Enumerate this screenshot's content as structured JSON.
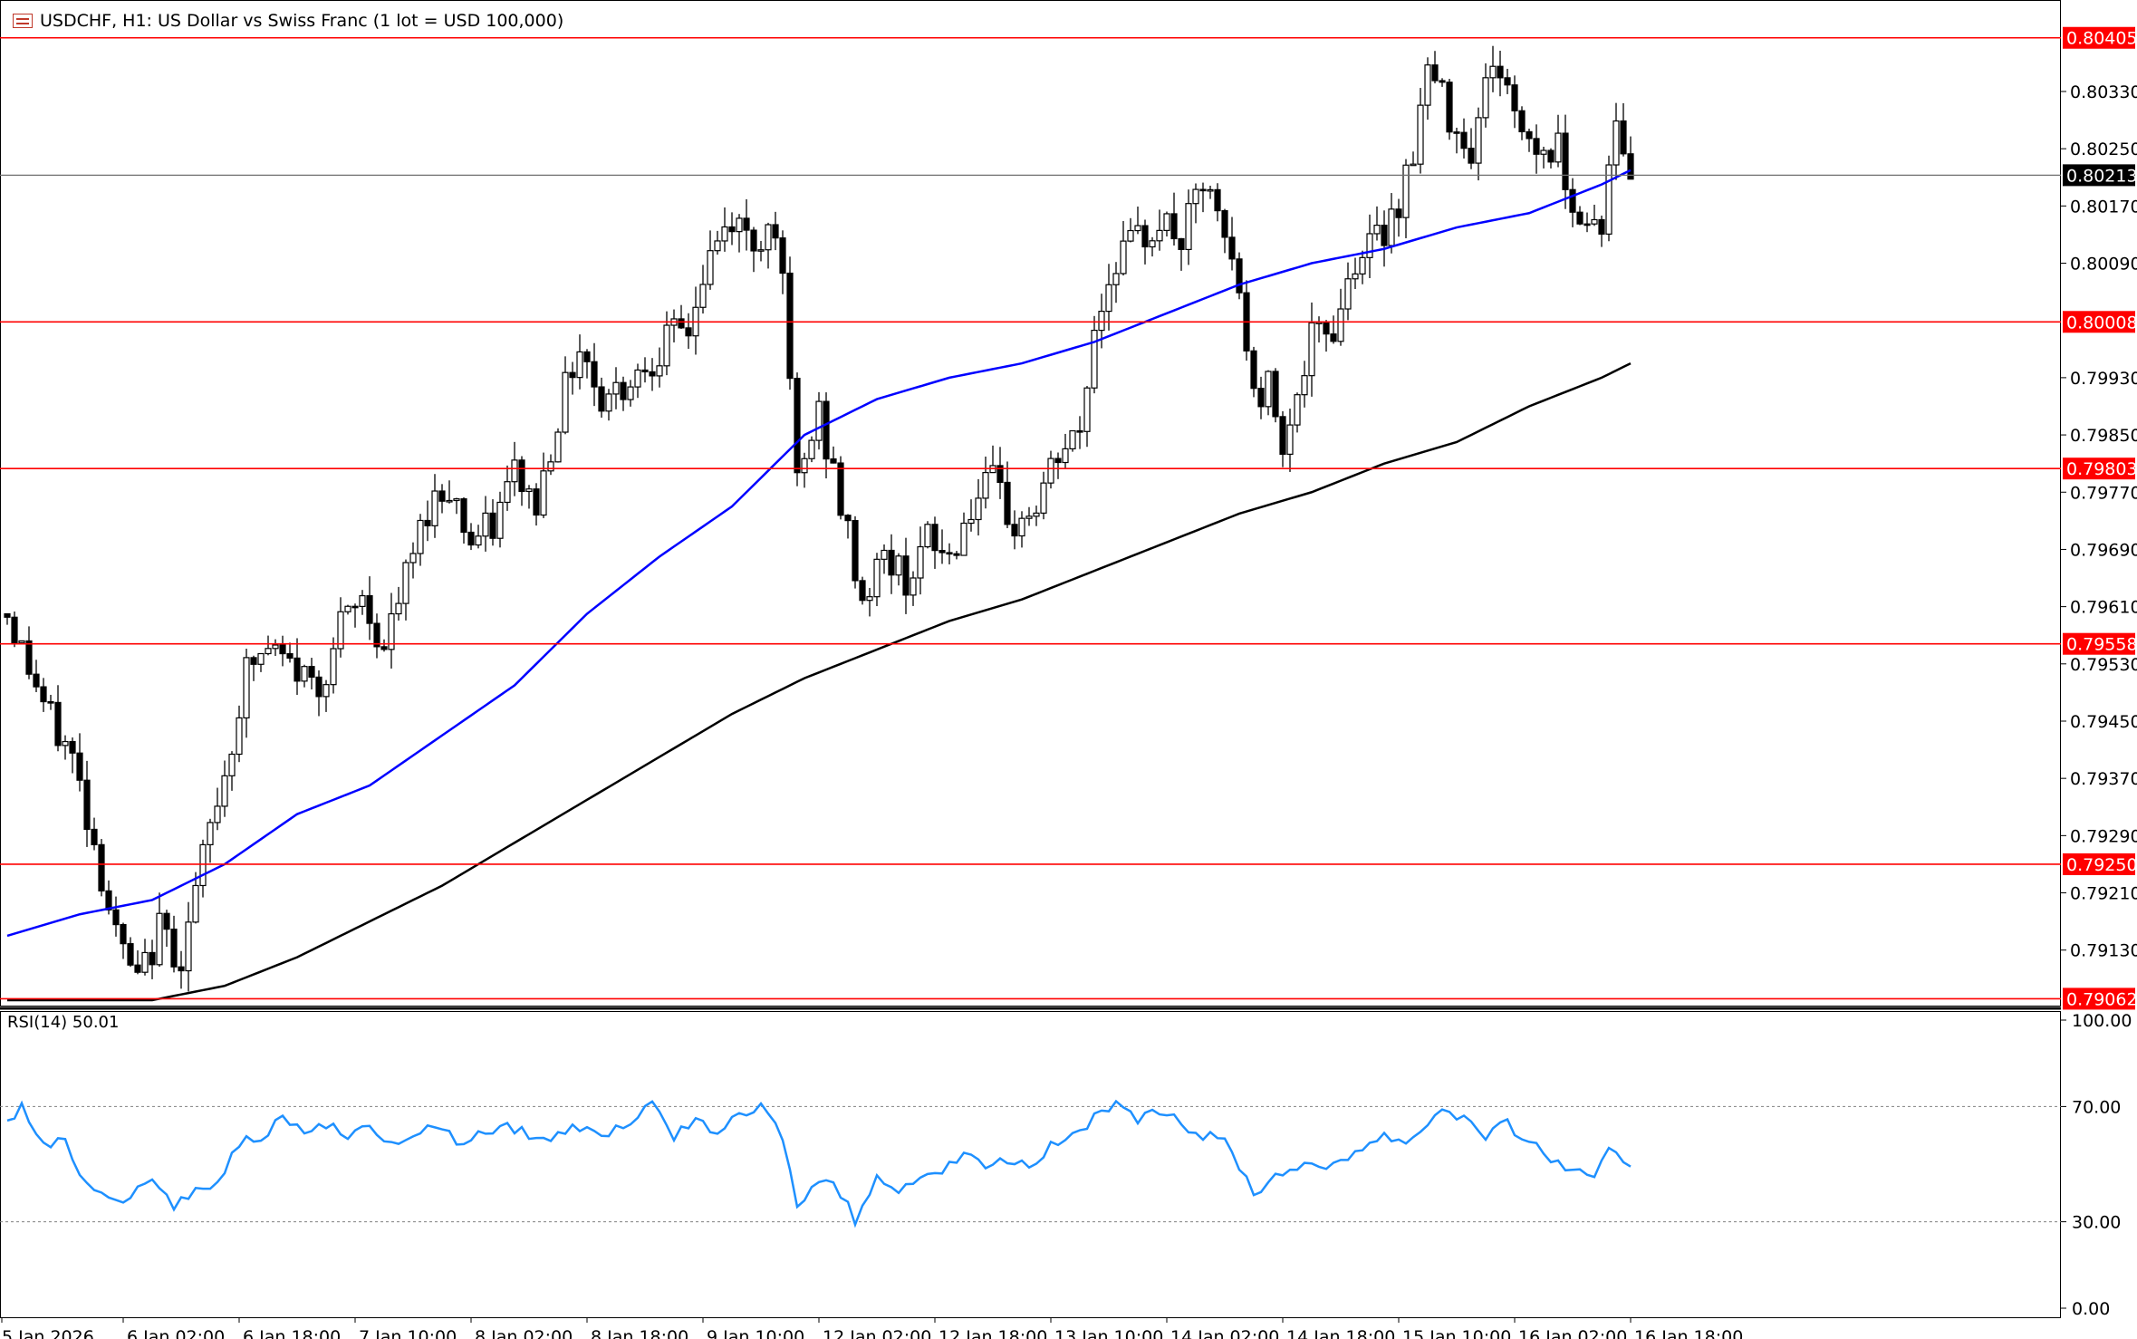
{
  "window": {
    "symbol_title": "USDCHF, H1:  US Dollar vs Swiss Franc (1 lot = USD 100,000)",
    "icon": "symbol-window-icon"
  },
  "colors": {
    "background": "#ffffff",
    "candle": "#000000",
    "ma_fast": "#0000ff",
    "ma_slow": "#000000",
    "level_line": "#ff0000",
    "level_label_bg": "#ff0000",
    "current_price_bg": "#000000",
    "rsi_line": "#1e90ff"
  },
  "chart_data": [
    {
      "type": "candlestick",
      "title": "USDCHF, H1:  US Dollar vs Swiss Franc (1 lot = USD 100,000)",
      "ylim": [
        0.7906,
        0.8043
      ],
      "y_ticks": [
        "0.80330",
        "0.80250",
        "0.80170",
        "0.80090",
        "0.79930",
        "0.79850",
        "0.79770",
        "0.79690",
        "0.79610",
        "0.79530",
        "0.79450",
        "0.79370",
        "0.79290",
        "0.79210",
        "0.79130"
      ],
      "x_ticks": [
        "5 Jan 2026",
        "6 Jan 02:00",
        "6 Jan 18:00",
        "7 Jan 10:00",
        "8 Jan 02:00",
        "8 Jan 18:00",
        "9 Jan 10:00",
        "12 Jan 02:00",
        "12 Jan 18:00",
        "13 Jan 10:00",
        "14 Jan 02:00",
        "14 Jan 18:00",
        "15 Jan 10:00",
        "16 Jan 02:00",
        "16 Jan 18:00"
      ],
      "levels": [
        "0.80405",
        "0.80008",
        "0.79803",
        "0.79558",
        "0.79250",
        "0.79062"
      ],
      "current_price": "0.80213",
      "close_path": [
        [
          0,
          0.796
        ],
        [
          6,
          0.7945
        ],
        [
          9,
          0.794
        ],
        [
          12,
          0.7928
        ],
        [
          15,
          0.7915
        ],
        [
          18,
          0.7908
        ],
        [
          21,
          0.7916
        ],
        [
          24,
          0.7912
        ],
        [
          28,
          0.793
        ],
        [
          31,
          0.7942
        ],
        [
          33,
          0.7952
        ],
        [
          36,
          0.7955
        ],
        [
          40,
          0.7952
        ],
        [
          43,
          0.795
        ],
        [
          46,
          0.7958
        ],
        [
          49,
          0.7962
        ],
        [
          52,
          0.7955
        ],
        [
          55,
          0.7965
        ],
        [
          58,
          0.7975
        ],
        [
          61,
          0.7978
        ],
        [
          64,
          0.797
        ],
        [
          67,
          0.7972
        ],
        [
          70,
          0.798
        ],
        [
          73,
          0.7975
        ],
        [
          76,
          0.7988
        ],
        [
          79,
          0.7998
        ],
        [
          82,
          0.799
        ],
        [
          85,
          0.7992
        ],
        [
          88,
          0.7995
        ],
        [
          91,
          0.7998
        ],
        [
          94,
          0.8
        ],
        [
          97,
          0.801
        ],
        [
          100,
          0.8015
        ],
        [
          103,
          0.8012
        ],
        [
          106,
          0.8015
        ],
        [
          107,
          0.8005
        ],
        [
          109,
          0.7978
        ],
        [
          112,
          0.7988
        ],
        [
          115,
          0.7975
        ],
        [
          118,
          0.7962
        ],
        [
          121,
          0.7968
        ],
        [
          124,
          0.7965
        ],
        [
          127,
          0.797
        ],
        [
          130,
          0.7968
        ],
        [
          133,
          0.7975
        ],
        [
          136,
          0.7978
        ],
        [
          139,
          0.7972
        ],
        [
          142,
          0.7975
        ],
        [
          145,
          0.7982
        ],
        [
          148,
          0.7985
        ],
        [
          150,
          0.8
        ],
        [
          153,
          0.801
        ],
        [
          156,
          0.8012
        ],
        [
          159,
          0.8015
        ],
        [
          162,
          0.8012
        ],
        [
          165,
          0.802
        ],
        [
          168,
          0.8012
        ],
        [
          170,
          0.8005
        ],
        [
          172,
          0.799
        ],
        [
          174,
          0.7992
        ],
        [
          176,
          0.7985
        ],
        [
          178,
          0.799
        ],
        [
          180,
          0.7998
        ],
        [
          183,
          0.8
        ],
        [
          186,
          0.801
        ],
        [
          189,
          0.8012
        ],
        [
          192,
          0.8018
        ],
        [
          194,
          0.8025
        ],
        [
          196,
          0.8036
        ],
        [
          199,
          0.803
        ],
        [
          202,
          0.8025
        ],
        [
          205,
          0.8038
        ],
        [
          208,
          0.803
        ],
        [
          211,
          0.8025
        ],
        [
          214,
          0.8025
        ],
        [
          217,
          0.8015
        ],
        [
          220,
          0.8015
        ],
        [
          222,
          0.8028
        ],
        [
          224,
          0.8022
        ]
      ],
      "ma_fast_path": [
        [
          0,
          0.7915
        ],
        [
          10,
          0.7918
        ],
        [
          20,
          0.792
        ],
        [
          30,
          0.7925
        ],
        [
          40,
          0.7932
        ],
        [
          50,
          0.7936
        ],
        [
          60,
          0.7943
        ],
        [
          70,
          0.795
        ],
        [
          80,
          0.796
        ],
        [
          90,
          0.7968
        ],
        [
          100,
          0.7975
        ],
        [
          110,
          0.7985
        ],
        [
          120,
          0.799
        ],
        [
          130,
          0.7993
        ],
        [
          140,
          0.7995
        ],
        [
          150,
          0.7998
        ],
        [
          160,
          0.8002
        ],
        [
          170,
          0.8006
        ],
        [
          180,
          0.8009
        ],
        [
          190,
          0.8011
        ],
        [
          200,
          0.8014
        ],
        [
          210,
          0.8016
        ],
        [
          220,
          0.802
        ],
        [
          224,
          0.8022
        ]
      ],
      "ma_slow_path": [
        [
          0,
          0.7906
        ],
        [
          20,
          0.7906
        ],
        [
          30,
          0.7908
        ],
        [
          40,
          0.7912
        ],
        [
          50,
          0.7917
        ],
        [
          60,
          0.7922
        ],
        [
          70,
          0.7928
        ],
        [
          80,
          0.7934
        ],
        [
          90,
          0.794
        ],
        [
          100,
          0.7946
        ],
        [
          110,
          0.7951
        ],
        [
          120,
          0.7955
        ],
        [
          130,
          0.7959
        ],
        [
          140,
          0.7962
        ],
        [
          150,
          0.7966
        ],
        [
          160,
          0.797
        ],
        [
          170,
          0.7974
        ],
        [
          180,
          0.7977
        ],
        [
          190,
          0.7981
        ],
        [
          200,
          0.7984
        ],
        [
          210,
          0.7989
        ],
        [
          220,
          0.7993
        ],
        [
          224,
          0.7995
        ]
      ]
    },
    {
      "type": "line",
      "title": "RSI(14) 50.01",
      "ylim": [
        0,
        100
      ],
      "y_ticks": [
        "100.00",
        "70.00",
        "30.00",
        "0.00"
      ],
      "guides": [
        70,
        30
      ],
      "series": [
        {
          "name": "RSI(14)",
          "points": [
            [
              0,
              64
            ],
            [
              2,
              70
            ],
            [
              5,
              56
            ],
            [
              8,
              58
            ],
            [
              11,
              43
            ],
            [
              14,
              40
            ],
            [
              17,
              38
            ],
            [
              20,
              45
            ],
            [
              23,
              36
            ],
            [
              26,
              40
            ],
            [
              29,
              44
            ],
            [
              32,
              58
            ],
            [
              35,
              60
            ],
            [
              38,
              65
            ],
            [
              41,
              62
            ],
            [
              44,
              64
            ],
            [
              47,
              60
            ],
            [
              50,
              62
            ],
            [
              53,
              58
            ],
            [
              56,
              60
            ],
            [
              59,
              64
            ],
            [
              62,
              58
            ],
            [
              65,
              60
            ],
            [
              68,
              63
            ],
            [
              71,
              62
            ],
            [
              74,
              58
            ],
            [
              77,
              62
            ],
            [
              80,
              64
            ],
            [
              83,
              60
            ],
            [
              86,
              65
            ],
            [
              89,
              70
            ],
            [
              92,
              60
            ],
            [
              95,
              64
            ],
            [
              98,
              62
            ],
            [
              101,
              66
            ],
            [
              104,
              70
            ],
            [
              107,
              60
            ],
            [
              109,
              35
            ],
            [
              112,
              45
            ],
            [
              115,
              40
            ],
            [
              117,
              30
            ],
            [
              120,
              45
            ],
            [
              123,
              42
            ],
            [
              126,
              46
            ],
            [
              129,
              48
            ],
            [
              132,
              52
            ],
            [
              135,
              50
            ],
            [
              138,
              52
            ],
            [
              141,
              50
            ],
            [
              144,
              56
            ],
            [
              147,
              60
            ],
            [
              150,
              66
            ],
            [
              153,
              70
            ],
            [
              156,
              65
            ],
            [
              159,
              68
            ],
            [
              162,
              64
            ],
            [
              165,
              60
            ],
            [
              168,
              58
            ],
            [
              170,
              50
            ],
            [
              172,
              40
            ],
            [
              175,
              46
            ],
            [
              178,
              50
            ],
            [
              181,
              48
            ],
            [
              184,
              52
            ],
            [
              187,
              56
            ],
            [
              190,
              60
            ],
            [
              193,
              58
            ],
            [
              196,
              64
            ],
            [
              198,
              70
            ],
            [
              201,
              66
            ],
            [
              204,
              60
            ],
            [
              207,
              64
            ],
            [
              210,
              58
            ],
            [
              213,
              52
            ],
            [
              216,
              48
            ],
            [
              219,
              44
            ],
            [
              221,
              55
            ],
            [
              224,
              50
            ]
          ]
        }
      ]
    }
  ]
}
